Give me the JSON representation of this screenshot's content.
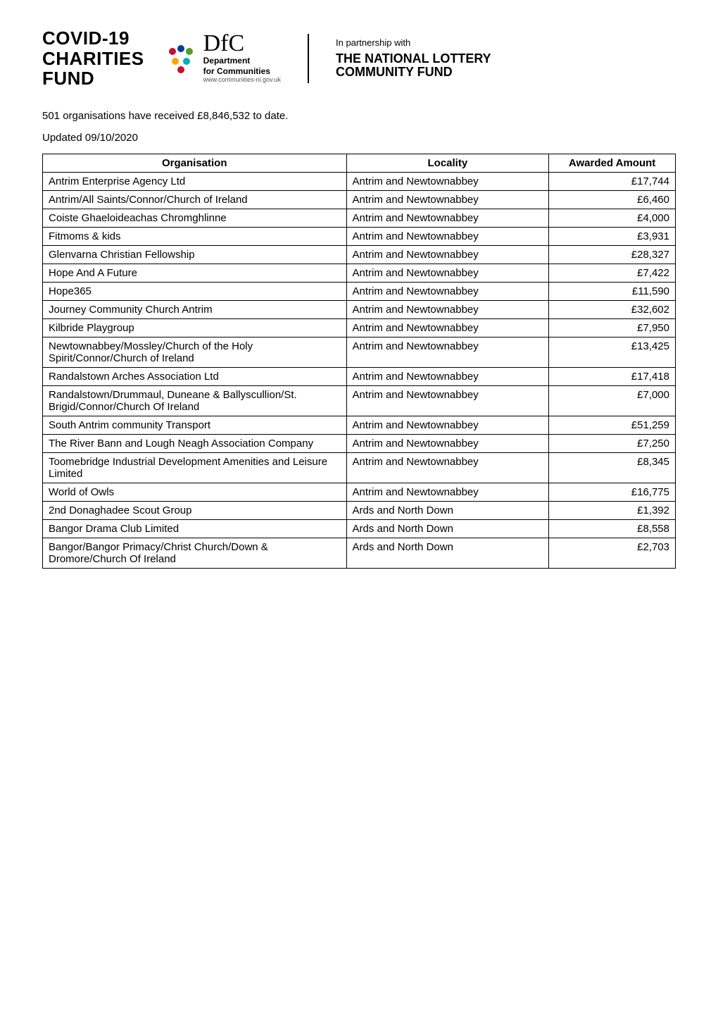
{
  "header": {
    "covid_title_line1": "COVID-19",
    "covid_title_line2": "CHARITIES",
    "covid_title_line3": "FUND",
    "dfc_main": "DfC",
    "dfc_sub_line1": "Department",
    "dfc_sub_line2": "for Communities",
    "dfc_url": "www.communities-ni.gov.uk",
    "partnership": "In partnership with",
    "lottery_line1": "THE NATIONAL LOTTERY",
    "lottery_line2": "COMMUNITY FUND"
  },
  "intro": "501 organisations have received £8,846,532 to date.",
  "updated": "Updated 09/10/2020",
  "table": {
    "columns": [
      "Organisation",
      "Locality",
      "Awarded Amount"
    ],
    "col_widths": [
      "48%",
      "32%",
      "20%"
    ],
    "rows": [
      [
        "Antrim Enterprise Agency Ltd",
        "Antrim and Newtownabbey",
        "£17,744"
      ],
      [
        "Antrim/All Saints/Connor/Church of Ireland",
        "Antrim and Newtownabbey",
        "£6,460"
      ],
      [
        "Coiste Ghaeloideachas Chromghlinne",
        "Antrim and Newtownabbey",
        "£4,000"
      ],
      [
        "Fitmoms & kids",
        "Antrim and Newtownabbey",
        "£3,931"
      ],
      [
        "Glenvarna Christian Fellowship",
        "Antrim and Newtownabbey",
        "£28,327"
      ],
      [
        "Hope And A Future",
        "Antrim and Newtownabbey",
        "£7,422"
      ],
      [
        "Hope365",
        "Antrim and Newtownabbey",
        "£11,590"
      ],
      [
        "Journey Community Church Antrim",
        "Antrim and Newtownabbey",
        "£32,602"
      ],
      [
        "Kilbride Playgroup",
        "Antrim and Newtownabbey",
        "£7,950"
      ],
      [
        "Newtownabbey/Mossley/Church of the Holy Spirit/Connor/Church of Ireland",
        "Antrim and Newtownabbey",
        "£13,425"
      ],
      [
        "Randalstown Arches Association Ltd",
        "Antrim and Newtownabbey",
        "£17,418"
      ],
      [
        "Randalstown/Drummaul, Duneane & Ballyscullion/St. Brigid/Connor/Church Of Ireland",
        "Antrim and Newtownabbey",
        "£7,000"
      ],
      [
        "South Antrim community Transport",
        "Antrim and Newtownabbey",
        "£51,259"
      ],
      [
        "The River Bann and Lough Neagh Association Company",
        "Antrim and Newtownabbey",
        "£7,250"
      ],
      [
        "Toomebridge Industrial Development Amenities and Leisure Limited",
        "Antrim and Newtownabbey",
        "£8,345"
      ],
      [
        "World of Owls",
        "Antrim and Newtownabbey",
        "£16,775"
      ],
      [
        "2nd Donaghadee Scout Group",
        "Ards and North Down",
        "£1,392"
      ],
      [
        "Bangor Drama Club Limited",
        "Ards and North Down",
        "£8,558"
      ],
      [
        "Bangor/Bangor Primacy/Christ Church/Down & Dromore/Church Of Ireland",
        "Ards and North Down",
        "£2,703"
      ]
    ]
  },
  "colors": {
    "text": "#000000",
    "background": "#ffffff",
    "border": "#000000",
    "dfc_icon_red": "#c8102e",
    "dfc_icon_blue": "#003da5",
    "dfc_icon_green": "#509e2f",
    "dfc_icon_orange": "#f7a800",
    "dfc_icon_teal": "#00b0b9"
  },
  "typography": {
    "body_font": "Comic Sans MS, Trebuchet MS, sans-serif",
    "header_font": "Arial, sans-serif",
    "dfc_font": "Times New Roman, serif",
    "body_fontsize": 15,
    "covid_title_fontsize": 26,
    "dfc_main_fontsize": 34
  }
}
